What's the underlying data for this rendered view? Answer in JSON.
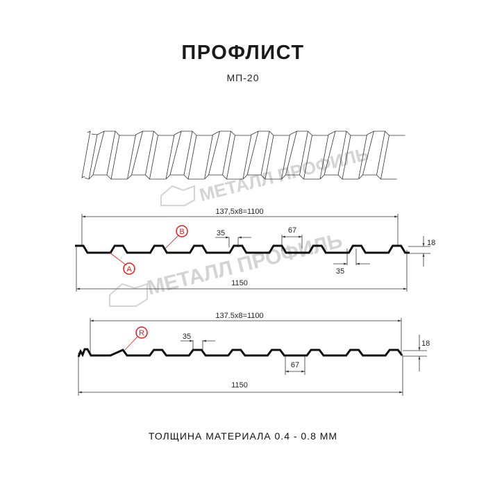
{
  "title": "ПРОФЛИСТ",
  "subtitle": "МП-20",
  "footer": "ТОЛЩИНА МАТЕРИАЛА 0.4 - 0.8 ММ",
  "watermark": "МЕТАЛЛ ПРОФИЛЬ",
  "profile_top": {
    "pitch_label": "137,5x8=1100",
    "total_label": "1150",
    "crest_label": "35",
    "crest_label_bottom": "35",
    "trough_label": "67",
    "height_label": "18",
    "marker_a": "A",
    "marker_b": "B"
  },
  "profile_bottom": {
    "pitch_label": "137.5x8=1100",
    "total_label": "1150",
    "crest_label": "35",
    "trough_label": "67",
    "height_label": "18",
    "marker_r": "R"
  },
  "colors": {
    "profile": "#111111",
    "marker": "#e21b1b",
    "watermark": "#cfcfcf"
  }
}
